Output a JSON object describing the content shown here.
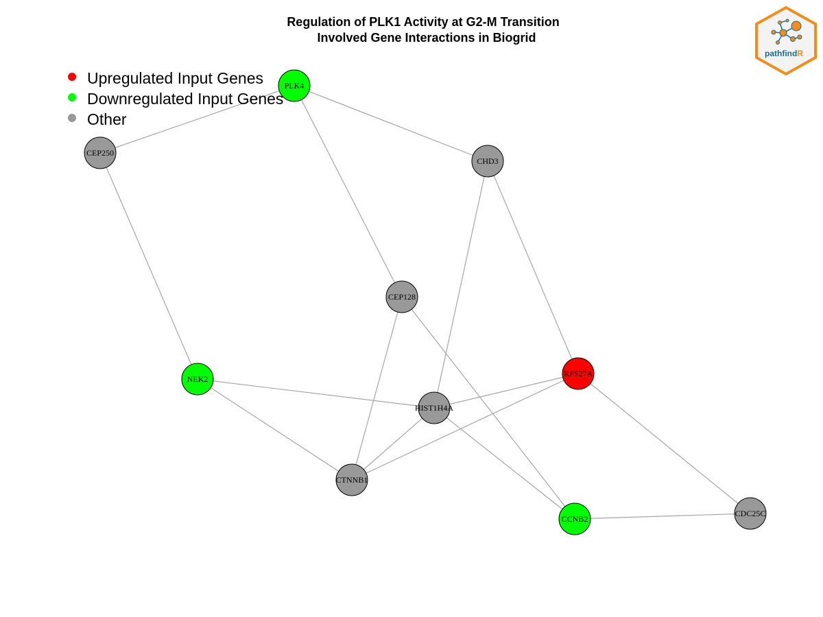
{
  "title_line1": "Regulation of PLK1 Activity at G2-M Transition",
  "title_line2": "Involved Gene Interactions in Biogrid",
  "legend": [
    {
      "label": "Upregulated Input Genes",
      "color": "#ff0000"
    },
    {
      "label": "Downregulated Input Genes",
      "color": "#00ff00"
    },
    {
      "label": "Other",
      "color": "#999999"
    }
  ],
  "logo": {
    "text_main": "pathfind",
    "text_accent": "R",
    "accent_color": "#f28c1b",
    "text_color": "#1f6b8a"
  },
  "colors": {
    "up": "#ff0000",
    "down": "#00ff00",
    "other": "#999999",
    "edge": "#a6a6a6"
  },
  "nodes": [
    {
      "id": "PLK4",
      "label": "PLK4",
      "status": "down"
    },
    {
      "id": "CEP250",
      "label": "CEP250",
      "status": "other"
    },
    {
      "id": "CHD3",
      "label": "CHD3",
      "status": "other"
    },
    {
      "id": "CEP128",
      "label": "CEP128",
      "status": "other"
    },
    {
      "id": "NEK2",
      "label": "NEK2",
      "status": "down"
    },
    {
      "id": "RPS27A",
      "label": "RPS27A",
      "status": "up"
    },
    {
      "id": "HIST1H4A",
      "label": "HIST1H4A",
      "status": "other"
    },
    {
      "id": "CTNNB1",
      "label": "CTNNB1",
      "status": "other"
    },
    {
      "id": "CCNB2",
      "label": "CCNB2",
      "status": "down"
    },
    {
      "id": "CDC25C",
      "label": "CDC25C",
      "status": "other"
    }
  ],
  "edges": [
    [
      "PLK4",
      "CEP250"
    ],
    [
      "PLK4",
      "CHD3"
    ],
    [
      "PLK4",
      "CEP128"
    ],
    [
      "CEP250",
      "NEK2"
    ],
    [
      "CHD3",
      "HIST1H4A"
    ],
    [
      "CHD3",
      "RPS27A"
    ],
    [
      "CEP128",
      "CTNNB1"
    ],
    [
      "CEP128",
      "CCNB2"
    ],
    [
      "NEK2",
      "HIST1H4A"
    ],
    [
      "NEK2",
      "CTNNB1"
    ],
    [
      "RPS27A",
      "HIST1H4A"
    ],
    [
      "RPS27A",
      "CTNNB1"
    ],
    [
      "RPS27A",
      "CDC25C"
    ],
    [
      "HIST1H4A",
      "CTNNB1"
    ],
    [
      "HIST1H4A",
      "CCNB2"
    ],
    [
      "CCNB2",
      "CDC25C"
    ]
  ]
}
